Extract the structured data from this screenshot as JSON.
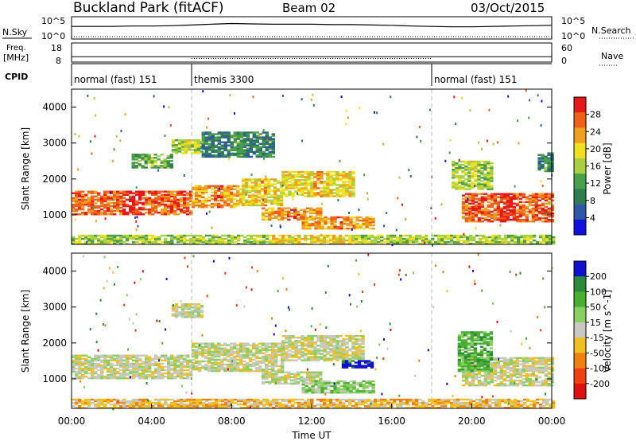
{
  "header": {
    "station": "Buckland Park (fitACF)",
    "beam": "Beam 02",
    "date": "03/Oct/2015"
  },
  "side_labels": {
    "nsky": "N.Sky",
    "freq_line1": "Freq.",
    "freq_line2": "[MHz]",
    "cpid": "CPID",
    "nsearch": "N.Search",
    "nave": "Nave"
  },
  "chart_data": [
    {
      "type": "line",
      "panel": "noise",
      "left_ticks": [
        "10^5",
        "10^0"
      ],
      "right_ticks": [
        "10^5",
        "10^0"
      ],
      "series": [
        {
          "name": "N.Sky",
          "style": "solid",
          "x": [
            0,
            1,
            2,
            3,
            4,
            5,
            6,
            7,
            8,
            9,
            10,
            11,
            12,
            13,
            14,
            15,
            16,
            17,
            18,
            19,
            20,
            21,
            22,
            23,
            24
          ],
          "y": [
            3.0,
            3.0,
            3.0,
            3.1,
            3.1,
            3.2,
            3.4,
            3.6,
            3.8,
            3.7,
            3.6,
            3.6,
            3.6,
            3.5,
            3.5,
            3.4,
            3.3,
            3.1,
            3.0,
            2.9,
            2.9,
            3.0,
            3.1,
            3.2,
            3.3
          ]
        },
        {
          "name": "N.Search",
          "style": "dotted",
          "x": [
            0,
            24
          ],
          "y": [
            0.2,
            0.2
          ]
        }
      ]
    },
    {
      "type": "line",
      "panel": "frequency",
      "left_ticks": [
        "18",
        "8"
      ],
      "right_ticks": [
        "60",
        "0"
      ],
      "series": [
        {
          "name": "Freq.",
          "style": "solid",
          "x": [
            0,
            24
          ],
          "y": [
            10.5,
            10.5
          ]
        },
        {
          "name": "Nave",
          "style": "dotted",
          "x": [
            6,
            18
          ],
          "y": [
            8,
            8
          ]
        }
      ]
    },
    {
      "type": "table",
      "panel": "cpid",
      "segments": [
        {
          "start": 0,
          "end": 6,
          "label": "normal (fast) 151"
        },
        {
          "start": 6,
          "end": 18,
          "label": "themis 3300"
        },
        {
          "start": 18,
          "end": 24,
          "label": "normal (fast) 151"
        }
      ]
    },
    {
      "type": "heatmap",
      "panel": "power",
      "ylabel": "Slant Range [km]",
      "xlim": [
        0,
        24
      ],
      "ylim": [
        180,
        4500
      ],
      "y_ticks": [
        1000,
        2000,
        3000,
        4000
      ],
      "colorbar": {
        "label": "Power [dB]",
        "ticks": [
          4,
          8,
          12,
          16,
          20,
          24,
          28
        ],
        "colors": [
          "#1010e0",
          "#2d58a8",
          "#2f7d52",
          "#4a9f4a",
          "#a8d040",
          "#f0e020",
          "#f0a020",
          "#f06018",
          "#e81818"
        ]
      },
      "regions": [
        {
          "t0": 0.0,
          "t1": 6.0,
          "r0": 1000,
          "r1": 1650,
          "level": 7
        },
        {
          "t0": 6.0,
          "t1": 8.5,
          "r0": 1200,
          "r1": 1800,
          "level": 6
        },
        {
          "t0": 8.5,
          "t1": 10.5,
          "r0": 1250,
          "r1": 2000,
          "level": 5
        },
        {
          "t0": 9.5,
          "t1": 12.5,
          "r0": 850,
          "r1": 1200,
          "level": 6
        },
        {
          "t0": 10.5,
          "t1": 14.0,
          "r0": 1500,
          "r1": 2200,
          "level": 5
        },
        {
          "t0": 11.5,
          "t1": 15.0,
          "r0": 600,
          "r1": 950,
          "level": 6
        },
        {
          "t0": 19.5,
          "t1": 24.0,
          "r0": 800,
          "r1": 1600,
          "level": 7
        },
        {
          "t0": 19.0,
          "t1": 21.0,
          "r0": 1700,
          "r1": 2500,
          "level": 4
        },
        {
          "t0": 23.3,
          "t1": 24.0,
          "r0": 2200,
          "r1": 2700,
          "level": 2
        },
        {
          "t0": 5.0,
          "t1": 6.5,
          "r0": 2700,
          "r1": 3100,
          "level": 4
        },
        {
          "t0": 3.0,
          "t1": 5.0,
          "r0": 2300,
          "r1": 2700,
          "level": 3
        },
        {
          "t0": 6.5,
          "t1": 10.0,
          "r0": 2600,
          "r1": 3300,
          "level": 2
        },
        {
          "t0": 0.0,
          "t1": 24.0,
          "r0": 180,
          "r1": 420,
          "level": 4
        }
      ]
    },
    {
      "type": "heatmap",
      "panel": "velocity",
      "xlabel": "Time UT",
      "ylabel": "Slant Range [km]",
      "xlim": [
        0,
        24
      ],
      "ylim": [
        180,
        4500
      ],
      "x_ticks": [
        "00:00",
        "04:00",
        "08:00",
        "12:00",
        "16:00",
        "20:00",
        "00:00"
      ],
      "y_ticks": [
        1000,
        2000,
        3000,
        4000
      ],
      "colorbar": {
        "label": "Velocity [m s^-1]",
        "ticks": [
          "200",
          "100",
          "50",
          "15",
          "-15",
          "-50",
          "-100",
          "-200"
        ],
        "colors": [
          "#1010d0",
          "#2a8a3a",
          "#48b030",
          "#88d060",
          "#c8c8c0",
          "#f0c020",
          "#f08010",
          "#f04010",
          "#e01010"
        ]
      },
      "regions": [
        {
          "t0": 0.0,
          "t1": 6.0,
          "r0": 1000,
          "r1": 1650,
          "level": 4
        },
        {
          "t0": 6.0,
          "t1": 10.5,
          "r0": 1200,
          "r1": 2000,
          "level": 4
        },
        {
          "t0": 9.5,
          "t1": 12.5,
          "r0": 850,
          "r1": 1200,
          "level": 4
        },
        {
          "t0": 10.5,
          "t1": 14.5,
          "r0": 1500,
          "r1": 2200,
          "level": 4
        },
        {
          "t0": 13.5,
          "t1": 15.0,
          "r0": 1300,
          "r1": 1500,
          "level": 0
        },
        {
          "t0": 11.5,
          "t1": 15.0,
          "r0": 600,
          "r1": 950,
          "level": 3
        },
        {
          "t0": 19.5,
          "t1": 24.0,
          "r0": 800,
          "r1": 1600,
          "level": 4
        },
        {
          "t0": 19.3,
          "t1": 21.0,
          "r0": 1200,
          "r1": 2300,
          "level": 2
        },
        {
          "t0": 5.0,
          "t1": 6.5,
          "r0": 2700,
          "r1": 3100,
          "level": 4
        },
        {
          "t0": 0.0,
          "t1": 24.0,
          "r0": 180,
          "r1": 420,
          "level": 5
        }
      ]
    }
  ]
}
